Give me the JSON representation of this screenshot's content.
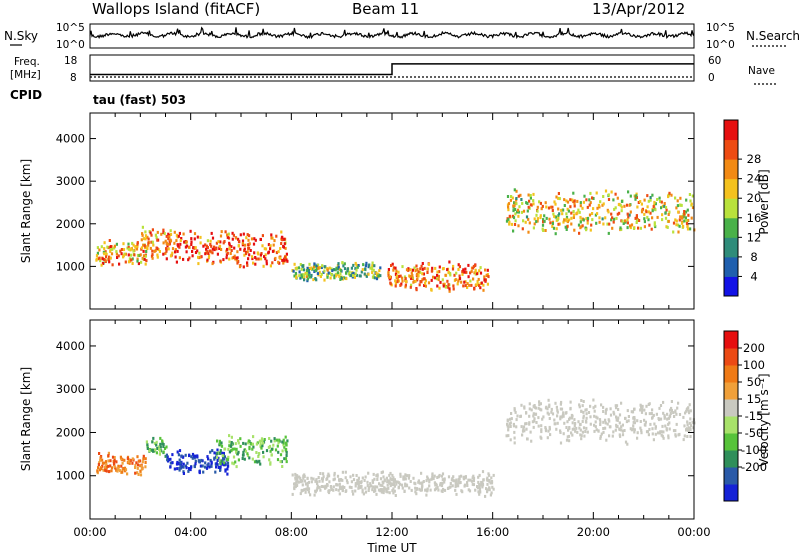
{
  "header": {
    "station": "Wallops Island (fitACF)",
    "beam": "Beam 11",
    "date": "13/Apr/2012"
  },
  "noise_panel": {
    "left_label": "N.Sky",
    "right_label": "N.Search",
    "left_ticks": [
      "10^5",
      "10^0"
    ],
    "right_ticks": [
      "10^5",
      "10^0"
    ]
  },
  "freq_panel": {
    "left_label_1": "Freq.",
    "left_label_2": "[MHz]",
    "right_label": "Nave",
    "cpid_label": "CPID",
    "left_ticks": [
      "18",
      "8"
    ],
    "right_ticks": [
      "60",
      "0"
    ],
    "freq_steps": [
      {
        "t": 0,
        "mhz": 10.5
      },
      {
        "t": 12.0,
        "mhz": 14.6
      },
      {
        "t": 24,
        "mhz": 14.6
      }
    ],
    "nave_level": 3
  },
  "program": {
    "label": "tau (fast) 503"
  },
  "chart_data": [
    {
      "type": "heatmap",
      "name": "power",
      "ylabel": "Slant Range [km]",
      "xlabel": "",
      "xlim": [
        0,
        24
      ],
      "ylim": [
        0,
        4600
      ],
      "yticks": [
        "1000",
        "2000",
        "3000",
        "4000"
      ],
      "colorbar": {
        "label": "Power [dB]",
        "ticks": [
          "4",
          "8",
          "12",
          "16",
          "20",
          "24",
          "28"
        ],
        "colors": [
          "#1212e6",
          "#1f5fae",
          "#2f8c7a",
          "#49b149",
          "#b9e23c",
          "#f4c21e",
          "#f28a14",
          "#ee4b12",
          "#e60f0f"
        ]
      },
      "echo_regions": [
        {
          "t0": 0.2,
          "t1": 2.2,
          "r_center": 1350,
          "thickness": 500,
          "level": 0.7
        },
        {
          "t0": 2.0,
          "t1": 3.2,
          "r_center": 1600,
          "thickness": 700,
          "level": 0.75
        },
        {
          "t0": 3.0,
          "t1": 7.8,
          "r_center": 1450,
          "thickness": 750,
          "level": 0.85
        },
        {
          "t0": 8.0,
          "t1": 11.5,
          "r_center": 900,
          "thickness": 400,
          "level": 0.4
        },
        {
          "t0": 11.8,
          "t1": 15.8,
          "r_center": 800,
          "thickness": 600,
          "level": 0.8
        },
        {
          "t0": 16.5,
          "t1": 24,
          "r_center": 2300,
          "thickness": 900,
          "level": 0.6
        }
      ]
    },
    {
      "type": "heatmap",
      "name": "velocity",
      "ylabel": "Slant Range [km]",
      "xlabel": "Time UT",
      "xlim": [
        0,
        24
      ],
      "ylim": [
        0,
        4600
      ],
      "yticks": [
        "1000",
        "2000",
        "3000",
        "4000"
      ],
      "xticks": [
        "00:00",
        "04:00",
        "08:00",
        "12:00",
        "16:00",
        "20:00",
        "00:00"
      ],
      "colorbar": {
        "label": "Velocity [m s⁻¹]",
        "ticks": [
          "200",
          "100",
          "50",
          "15",
          "-15",
          "-50",
          "-100",
          "-200"
        ],
        "colors": [
          "#1522d6",
          "#2a5aa8",
          "#2f8f5a",
          "#57c33a",
          "#a8e26a",
          "#c9c9c0",
          "#f0a03a",
          "#ef7a16",
          "#ec4a14",
          "#e60f0f"
        ]
      },
      "echo_regions": [
        {
          "t0": 0.2,
          "t1": 2.2,
          "r_center": 1300,
          "thickness": 500,
          "class": "orange"
        },
        {
          "t0": 2.2,
          "t1": 3.0,
          "r_center": 1700,
          "thickness": 400,
          "class": "green"
        },
        {
          "t0": 3.0,
          "t1": 5.5,
          "r_center": 1350,
          "thickness": 500,
          "class": "blue"
        },
        {
          "t0": 5.0,
          "t1": 7.8,
          "r_center": 1600,
          "thickness": 700,
          "class": "green"
        },
        {
          "t0": 8.0,
          "t1": 16.0,
          "r_center": 850,
          "thickness": 500,
          "class": "gray"
        },
        {
          "t0": 16.5,
          "t1": 24,
          "r_center": 2300,
          "thickness": 900,
          "class": "gray"
        }
      ]
    }
  ]
}
